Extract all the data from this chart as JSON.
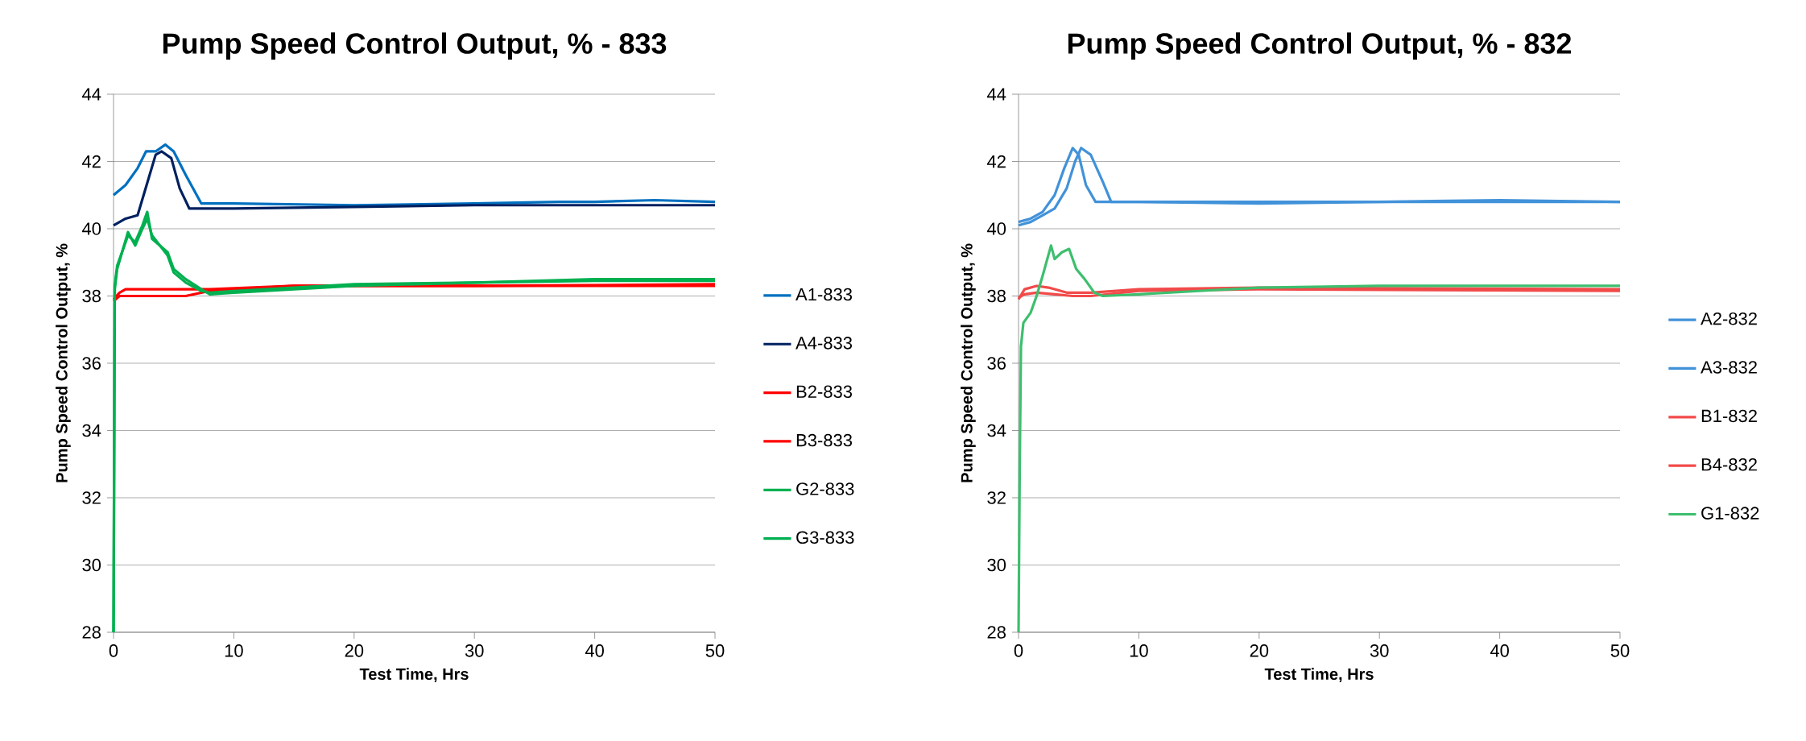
{
  "chart_data": [
    {
      "type": "line",
      "title": "Pump Speed Control Output, % - 833",
      "xlabel": "Test Time, Hrs",
      "ylabel": "Pump Speed Control Output, %",
      "xlim": [
        0,
        50
      ],
      "xticks": [
        0,
        10,
        20,
        30,
        40,
        50
      ],
      "ylim": [
        28,
        44
      ],
      "yticks": [
        28,
        30,
        32,
        34,
        36,
        38,
        40,
        42,
        44
      ],
      "grid": "y",
      "legend": "right",
      "series": [
        {
          "name": "A1-833",
          "color": "#0070c0",
          "x": [
            0,
            1,
            2,
            2.7,
            3.5,
            4.3,
            5,
            6,
            7.3,
            10,
            20,
            30,
            37,
            40,
            45,
            50
          ],
          "values": [
            41.0,
            41.3,
            41.8,
            42.3,
            42.3,
            42.5,
            42.3,
            41.6,
            40.75,
            40.75,
            40.7,
            40.75,
            40.8,
            40.8,
            40.85,
            40.8
          ]
        },
        {
          "name": "A4-833",
          "color": "#002060",
          "x": [
            0,
            1,
            2,
            2.5,
            3.5,
            4,
            4.8,
            5.5,
            6.3,
            10,
            20,
            30,
            40,
            50
          ],
          "values": [
            40.1,
            40.3,
            40.4,
            41.0,
            42.2,
            42.3,
            42.1,
            41.2,
            40.6,
            40.6,
            40.65,
            40.7,
            40.7,
            40.7
          ]
        },
        {
          "name": "B2-833",
          "color": "#ff0000",
          "x": [
            0,
            0.5,
            1,
            6,
            8,
            15,
            30,
            50
          ],
          "values": [
            37.85,
            38.0,
            38.0,
            38.0,
            38.15,
            38.3,
            38.3,
            38.35
          ]
        },
        {
          "name": "B3-833",
          "color": "#ff0000",
          "x": [
            0,
            0.5,
            1,
            6,
            8,
            15,
            30,
            50
          ],
          "values": [
            37.9,
            38.1,
            38.2,
            38.2,
            38.2,
            38.3,
            38.3,
            38.3
          ]
        },
        {
          "name": "G2-833",
          "color": "#00b050",
          "x": [
            0,
            0.1,
            0.3,
            1.2,
            1.8,
            2.4,
            2.8,
            3.2,
            4.5,
            5,
            6,
            7.3,
            8,
            10,
            15,
            20,
            30,
            40,
            50
          ],
          "values": [
            28,
            38.3,
            38.9,
            39.8,
            39.6,
            40.1,
            40.5,
            39.7,
            39.3,
            38.8,
            38.5,
            38.2,
            38.05,
            38.1,
            38.2,
            38.3,
            38.4,
            38.45,
            38.45
          ]
        },
        {
          "name": "G3-833",
          "color": "#00b050",
          "x": [
            0,
            0.1,
            0.3,
            1.2,
            1.8,
            2.4,
            2.8,
            3.2,
            4.5,
            5,
            6,
            7.3,
            8,
            10,
            15,
            20,
            30,
            40,
            50
          ],
          "values": [
            28,
            38.2,
            38.8,
            39.9,
            39.5,
            40.0,
            40.3,
            39.8,
            39.2,
            38.7,
            38.4,
            38.15,
            38.1,
            38.15,
            38.25,
            38.35,
            38.4,
            38.5,
            38.5
          ]
        }
      ]
    },
    {
      "type": "line",
      "title": "Pump Speed Control Output, % - 832",
      "xlabel": "Test Time, Hrs",
      "ylabel": "Pump Speed Control Output, %",
      "xlim": [
        0,
        50
      ],
      "xticks": [
        0,
        10,
        20,
        30,
        40,
        50
      ],
      "ylim": [
        28,
        44
      ],
      "yticks": [
        28,
        30,
        32,
        34,
        36,
        38,
        40,
        42,
        44
      ],
      "grid": "y",
      "legend": "right",
      "series": [
        {
          "name": "A2-832",
          "color": "#4192d9",
          "x": [
            0,
            1,
            2,
            3,
            3.8,
            4.5,
            5,
            5.6,
            6.4,
            10,
            20,
            30,
            40,
            50
          ],
          "values": [
            40.2,
            40.3,
            40.5,
            41.0,
            41.8,
            42.4,
            42.2,
            41.3,
            40.8,
            40.8,
            40.75,
            40.8,
            40.8,
            40.8
          ]
        },
        {
          "name": "A3-832",
          "color": "#4192d9",
          "x": [
            0,
            1,
            2,
            3,
            4,
            4.7,
            5.2,
            6,
            7,
            7.7,
            10,
            20,
            30,
            40,
            50
          ],
          "values": [
            40.1,
            40.2,
            40.4,
            40.6,
            41.2,
            42.0,
            42.4,
            42.2,
            41.4,
            40.8,
            40.8,
            40.8,
            40.8,
            40.85,
            40.8
          ]
        },
        {
          "name": "B1-832",
          "color": "#f24a4a",
          "x": [
            0,
            0.5,
            1.5,
            2.5,
            4,
            6,
            10,
            20,
            50
          ],
          "values": [
            37.9,
            38.2,
            38.3,
            38.25,
            38.1,
            38.1,
            38.2,
            38.25,
            38.2
          ]
        },
        {
          "name": "B4-832",
          "color": "#f24a4a",
          "x": [
            0,
            0.5,
            1.5,
            3,
            4.5,
            6,
            10,
            20,
            50
          ],
          "values": [
            37.95,
            38.05,
            38.1,
            38.05,
            38.0,
            38.0,
            38.15,
            38.2,
            38.15
          ]
        },
        {
          "name": "G1-832",
          "color": "#3dbf6e",
          "x": [
            0,
            0.1,
            0.2,
            0.4,
            1,
            1.5,
            2,
            2.7,
            3,
            3.6,
            4.2,
            4.8,
            5.5,
            6.3,
            7,
            10,
            15,
            20,
            30,
            50
          ],
          "values": [
            28,
            33,
            36.5,
            37.2,
            37.5,
            38,
            38.6,
            39.5,
            39.1,
            39.3,
            39.4,
            38.8,
            38.5,
            38.1,
            38.0,
            38.05,
            38.15,
            38.25,
            38.3,
            38.3
          ]
        }
      ]
    }
  ]
}
